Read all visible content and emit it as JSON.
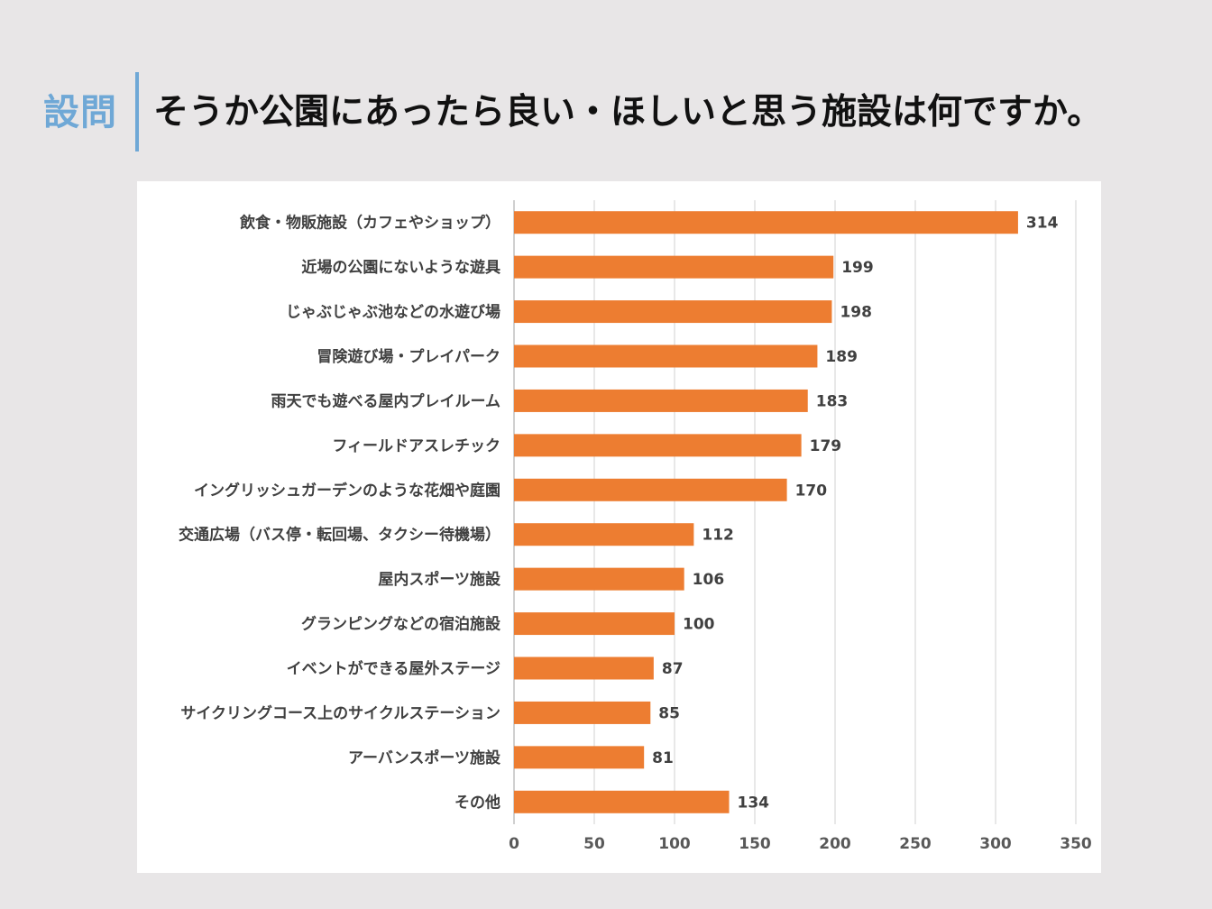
{
  "header": {
    "label": "設問",
    "title": "そうか公園にあったら良い・ほしいと思う施設は何ですか。"
  },
  "colors": {
    "bar": "#ed7d31",
    "accent": "#6fa8d6",
    "grid": "#d9d9d9",
    "axis": "#bfbfbf"
  },
  "chart_data": {
    "type": "bar",
    "orientation": "horizontal",
    "title": "そうか公園にあったら良い・ほしいと思う施設は何ですか。",
    "categories": [
      "飲食・物販施設（カフェやショップ）",
      "近場の公園にないような遊具",
      "じゃぶじゃぶ池などの水遊び場",
      "冒険遊び場・プレイパーク",
      "雨天でも遊べる屋内プレイルーム",
      "フィールドアスレチック",
      "イングリッシュガーデンのような花畑や庭園",
      "交通広場（バス停・転回場、タクシー待機場）",
      "屋内スポーツ施設",
      "グランピングなどの宿泊施設",
      "イベントができる屋外ステージ",
      "サイクリングコース上のサイクルステーション",
      "アーバンスポーツ施設",
      "その他"
    ],
    "values": [
      314,
      199,
      198,
      189,
      183,
      179,
      170,
      112,
      106,
      100,
      87,
      85,
      81,
      134
    ],
    "xlim": [
      0,
      350
    ],
    "xticks": [
      0,
      50,
      100,
      150,
      200,
      250,
      300,
      350
    ],
    "xlabel": "",
    "ylabel": "",
    "grid": true,
    "legend": "none"
  }
}
